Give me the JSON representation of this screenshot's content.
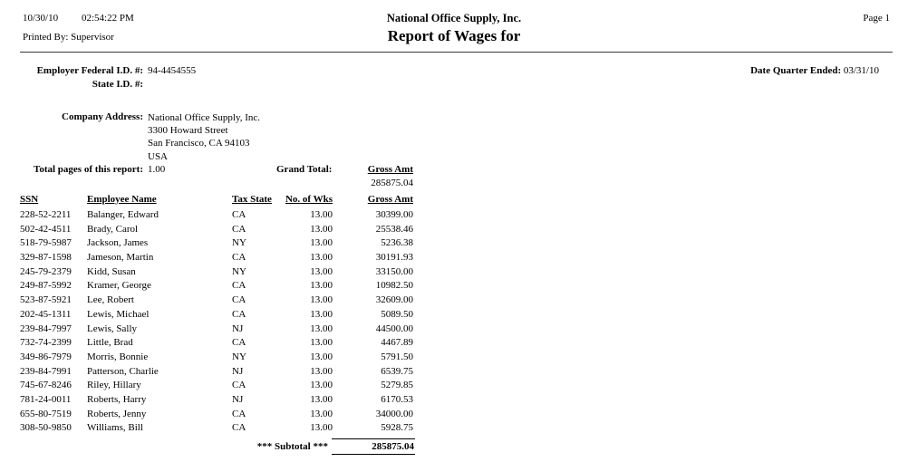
{
  "header": {
    "date": "10/30/10",
    "time": "02:54:22 PM",
    "printed_by_label": "Printed By:",
    "printed_by": "Supervisor",
    "company": "National Office Supply, Inc.",
    "title": "Report of Wages for",
    "page": "Page 1"
  },
  "info": {
    "fed_id_label": "Employer Federal I.D. #:",
    "fed_id": "94-4454555",
    "state_id_label": "State I.D. #:",
    "state_id": "",
    "quarter_label": "Date Quarter Ended:",
    "quarter": "03/31/10",
    "address_label": "Company Address:",
    "address_lines": [
      "National Office Supply, Inc.",
      "3300 Howard Street",
      "San Francisco, CA 94103",
      "USA"
    ],
    "total_pages_label": "Total pages of this report:",
    "total_pages": "1.00",
    "grand_total_label": "Grand Total:",
    "gross_amt_label": "Gross Amt",
    "grand_total_value": "285875.04"
  },
  "table": {
    "headers": [
      "SSN",
      "Employee Name",
      "Tax State",
      "No. of Wks",
      "Gross Amt"
    ],
    "rows": [
      [
        "228-52-2211",
        "Balanger, Edward",
        "CA",
        "13.00",
        "30399.00"
      ],
      [
        "502-42-4511",
        "Brady, Carol",
        "CA",
        "13.00",
        "25538.46"
      ],
      [
        "518-79-5987",
        "Jackson, James",
        "NY",
        "13.00",
        "5236.38"
      ],
      [
        "329-87-1598",
        "Jameson, Martin",
        "CA",
        "13.00",
        "30191.93"
      ],
      [
        "245-79-2379",
        "Kidd, Susan",
        "NY",
        "13.00",
        "33150.00"
      ],
      [
        "249-87-5992",
        "Kramer, George",
        "CA",
        "13.00",
        "10982.50"
      ],
      [
        "523-87-5921",
        "Lee, Robert",
        "CA",
        "13.00",
        "32609.00"
      ],
      [
        "202-45-1311",
        "Lewis, Michael",
        "CA",
        "13.00",
        "5089.50"
      ],
      [
        "239-84-7997",
        "Lewis, Sally",
        "NJ",
        "13.00",
        "44500.00"
      ],
      [
        "732-74-2399",
        "Little, Brad",
        "CA",
        "13.00",
        "4467.89"
      ],
      [
        "349-86-7979",
        "Morris, Bonnie",
        "NY",
        "13.00",
        "5791.50"
      ],
      [
        "239-84-7991",
        "Patterson, Charlie",
        "NJ",
        "13.00",
        "6539.75"
      ],
      [
        "745-67-8246",
        "Riley, Hillary",
        "CA",
        "13.00",
        "5279.85"
      ],
      [
        "781-24-0011",
        "Roberts, Harry",
        "NJ",
        "13.00",
        "6170.53"
      ],
      [
        "655-80-7519",
        "Roberts, Jenny",
        "CA",
        "13.00",
        "34000.00"
      ],
      [
        "308-50-9850",
        "Williams, Bill",
        "CA",
        "13.00",
        "5928.75"
      ]
    ],
    "subtotal_label": "*** Subtotal ***",
    "subtotal_value": "285875.04"
  }
}
